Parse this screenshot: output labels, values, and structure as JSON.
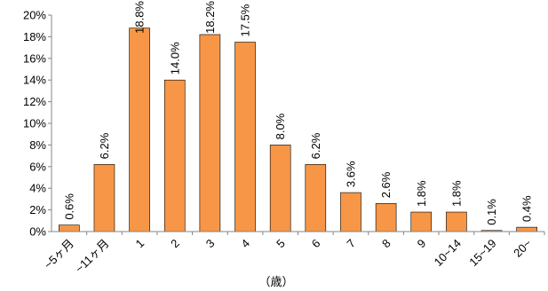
{
  "chart_data": {
    "type": "bar",
    "categories": [
      "~5ヶ月",
      "~11ヶ月",
      "1",
      "2",
      "3",
      "4",
      "5",
      "6",
      "7",
      "8",
      "9",
      "10~14",
      "15~19",
      "20~"
    ],
    "values": [
      0.6,
      6.2,
      18.8,
      14.0,
      18.2,
      17.5,
      8.0,
      6.2,
      3.6,
      2.6,
      1.8,
      1.8,
      0.1,
      0.4
    ],
    "data_labels": [
      "0.6%",
      "6.2%",
      "18.8%",
      "14.0%",
      "18.2%",
      "17.5%",
      "8.0%",
      "6.2%",
      "3.6%",
      "2.6%",
      "1.8%",
      "1.8%",
      "0.1%",
      "0.4%"
    ],
    "yticks": [
      "0%",
      "2%",
      "4%",
      "6%",
      "8%",
      "10%",
      "12%",
      "14%",
      "16%",
      "18%",
      "20%"
    ],
    "ylim": [
      0,
      20
    ],
    "xlabel": "（歳）",
    "ylabel": "",
    "title": "",
    "grid": false,
    "legend": "none",
    "bar_color": "#F79646",
    "bar_edge_color": "#000000"
  }
}
